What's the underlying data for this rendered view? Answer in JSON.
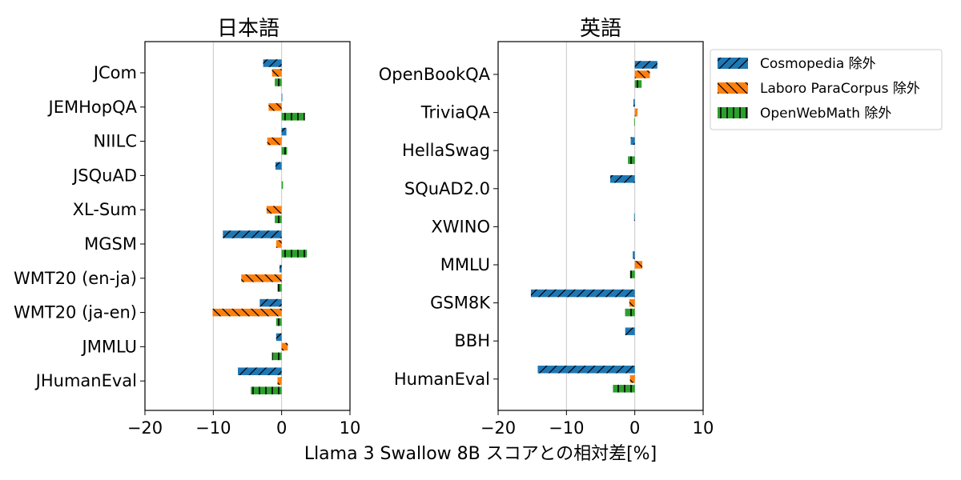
{
  "chart_data": {
    "type": "bar",
    "orientation": "horizontal",
    "xlabel": "Llama 3 Swallow 8B スコアとの相対差[%]",
    "legend": {
      "placement": "top-right",
      "entries": [
        "Cosmopedia 除外",
        "Laboro ParaCorpus 除外",
        "OpenWebMath 除外"
      ]
    },
    "series_styles": [
      {
        "name": "Cosmopedia 除外",
        "color": "#1f77b4",
        "hatch": "/"
      },
      {
        "name": "Laboro ParaCorpus 除外",
        "color": "#ff7f0e",
        "hatch": "\\"
      },
      {
        "name": "OpenWebMath 除外",
        "color": "#2ca02c",
        "hatch": "|"
      }
    ],
    "panels": [
      {
        "title": "日本語",
        "xlim": [
          -20,
          10
        ],
        "xticks": [
          -20,
          -10,
          0,
          10
        ],
        "grid": "vertical lines at -10 and 0",
        "categories": [
          "JCom",
          "JEMHopQA",
          "NIILC",
          "JSQuAD",
          "XL-Sum",
          "MGSM",
          "WMT20 (en-ja)",
          "WMT20 (ja-en)",
          "JMMLU",
          "JHumanEval"
        ],
        "series": [
          {
            "name": "Cosmopedia 除外",
            "values": [
              -2.7,
              0.1,
              0.7,
              -0.9,
              0.0,
              -8.6,
              -0.3,
              -3.2,
              -0.8,
              -6.4
            ]
          },
          {
            "name": "Laboro ParaCorpus 除外",
            "values": [
              -1.4,
              -1.9,
              -2.1,
              0.0,
              -2.2,
              -0.8,
              -5.9,
              -10.1,
              0.9,
              -0.6
            ]
          },
          {
            "name": "OpenWebMath 除外",
            "values": [
              -1.0,
              3.4,
              0.8,
              0.2,
              -1.0,
              3.7,
              -0.6,
              -0.8,
              -1.4,
              -4.5
            ]
          }
        ]
      },
      {
        "title": "英語",
        "xlim": [
          -20,
          10
        ],
        "xticks": [
          -20,
          -10,
          0,
          10
        ],
        "grid": "vertical lines at -10 and 0",
        "categories": [
          "OpenBookQA",
          "TriviaQA",
          "HellaSwag",
          "SQuAD2.0",
          "XWINO",
          "MMLU",
          "GSM8K",
          "BBH",
          "HumanEval"
        ],
        "series": [
          {
            "name": "Cosmopedia 除外",
            "values": [
              3.3,
              -0.2,
              -0.6,
              -3.6,
              -0.1,
              -0.3,
              -15.2,
              -1.4,
              -14.2
            ]
          },
          {
            "name": "Laboro ParaCorpus 除外",
            "values": [
              2.2,
              0.4,
              0.0,
              0.0,
              0.0,
              1.1,
              -0.8,
              0.0,
              -0.7
            ]
          },
          {
            "name": "OpenWebMath 除外",
            "values": [
              1.0,
              -0.1,
              -1.0,
              0.0,
              0.0,
              -0.7,
              -1.4,
              0.0,
              -3.2
            ]
          }
        ]
      }
    ]
  }
}
